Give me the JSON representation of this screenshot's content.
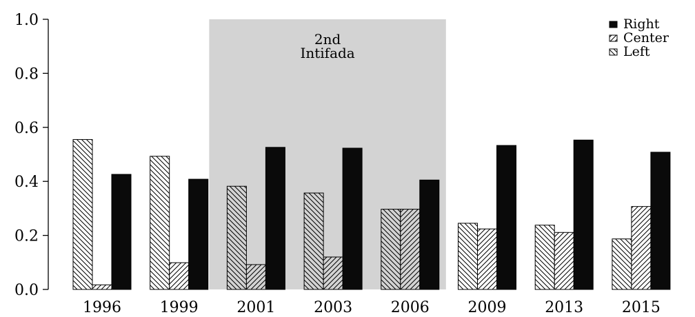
{
  "chart_data": {
    "type": "bar",
    "categories": [
      "1996",
      "1999",
      "2001",
      "2003",
      "2006",
      "2009",
      "2013",
      "2015"
    ],
    "series": [
      {
        "name": "Left",
        "values": [
          0.555,
          0.493,
          0.382,
          0.357,
          0.297,
          0.245,
          0.238,
          0.187
        ]
      },
      {
        "name": "Center",
        "values": [
          0.017,
          0.099,
          0.092,
          0.12,
          0.297,
          0.224,
          0.211,
          0.307
        ]
      },
      {
        "name": "Right",
        "values": [
          0.426,
          0.408,
          0.526,
          0.523,
          0.405,
          0.533,
          0.553,
          0.508
        ]
      }
    ],
    "ylim": [
      0,
      1.0
    ],
    "yticks": [
      "0.0",
      "0.2",
      "0.4",
      "0.6",
      "0.8",
      "1.0"
    ],
    "legend": {
      "placement": "top-right",
      "entries": [
        "Right",
        "Center",
        "Left"
      ]
    },
    "annotation": {
      "lines": [
        "2nd",
        "Intifada"
      ],
      "span": [
        "2001",
        "2006"
      ],
      "color": "#d3d3d3"
    },
    "colors": {
      "left_fill": "#ffffff",
      "center_fill": "#ffffff",
      "right_fill": "#0a0a0a",
      "shade": "#d3d3d3"
    }
  }
}
